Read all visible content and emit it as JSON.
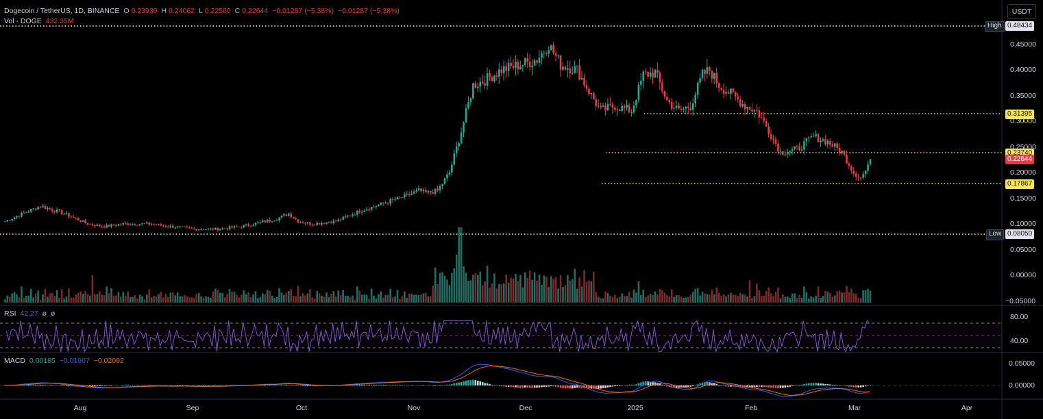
{
  "header": {
    "symbol": "Dogecoin / TetherUS, 1D, BINANCE",
    "open_label": "O",
    "open": "0.23930",
    "high_label": "H",
    "high": "0.24062",
    "low_label": "L",
    "low": "0.22560",
    "close_label": "C",
    "close": "0.22644",
    "change": "−0.01287 (−5.38%)",
    "change2": "−0.01287 (−5.38%)",
    "vol_label": "Vol · DOGE",
    "vol_value": "432.35M"
  },
  "currency_button": "USDT",
  "price_axis": {
    "ticks": [
      "0.45000",
      "0.40000",
      "0.35000",
      "0.30000",
      "0.25000",
      "0.20000",
      "0.15000",
      "0.10000",
      "0.05000",
      "0.00000",
      "−0.05000"
    ]
  },
  "markers": {
    "high_label": "High",
    "high_value": "0.48434",
    "low_label": "Low",
    "low_value": "0.08050",
    "level1": "0.31395",
    "level2": "0.23740",
    "current": "0.22644",
    "level3": "0.17867"
  },
  "rsi": {
    "label": "RSI",
    "value": "42.27",
    "extra1": "ø",
    "extra2": "ø",
    "ticks": [
      "80.00",
      "40.00"
    ]
  },
  "macd": {
    "label": "MACD",
    "hist": "0.00185",
    "macd": "−0.01907",
    "signal": "−0.02092",
    "ticks": [
      "0.05000",
      "0.00000"
    ]
  },
  "time_axis": [
    "Aug",
    "Sep",
    "Oct",
    "Nov",
    "Dec",
    "2025",
    "Feb",
    "Mar",
    "Apr"
  ],
  "colors": {
    "up": "#22ab94",
    "down": "#f23645",
    "up_vol": "#1e6e62",
    "down_vol": "#7a2a2e",
    "rsi_line": "#7e57c2",
    "macd_line": "#2962ff",
    "signal_line": "#ff6d00",
    "level_line": "#f7e64f",
    "extreme_line": "#ffffff"
  },
  "chart_data": {
    "type": "candlestick",
    "symbol": "Dogecoin / TetherUS",
    "interval": "1D",
    "price_range": [
      0.0,
      0.48434
    ],
    "x": [
      "Aug",
      "Sep",
      "Oct",
      "Nov",
      "Dec",
      "2025",
      "Feb",
      "Mar",
      "Apr"
    ],
    "anchors": [
      [
        0,
        0.105
      ],
      [
        10,
        0.125
      ],
      [
        15,
        0.135
      ],
      [
        25,
        0.12
      ],
      [
        35,
        0.1
      ],
      [
        42,
        0.095
      ],
      [
        50,
        0.1
      ],
      [
        60,
        0.1
      ],
      [
        70,
        0.095
      ],
      [
        80,
        0.09
      ],
      [
        90,
        0.09
      ],
      [
        100,
        0.095
      ],
      [
        110,
        0.105
      ],
      [
        115,
        0.11
      ],
      [
        120,
        0.12
      ],
      [
        124,
        0.105
      ],
      [
        130,
        0.1
      ],
      [
        140,
        0.105
      ],
      [
        150,
        0.125
      ],
      [
        160,
        0.14
      ],
      [
        170,
        0.155
      ],
      [
        175,
        0.165
      ],
      [
        178,
        0.16
      ],
      [
        183,
        0.165
      ],
      [
        188,
        0.2
      ],
      [
        193,
        0.28
      ],
      [
        198,
        0.37
      ],
      [
        203,
        0.38
      ],
      [
        210,
        0.4
      ],
      [
        218,
        0.41
      ],
      [
        225,
        0.42
      ],
      [
        230,
        0.45
      ],
      [
        235,
        0.41
      ],
      [
        242,
        0.4
      ],
      [
        248,
        0.35
      ],
      [
        252,
        0.32
      ],
      [
        258,
        0.33
      ],
      [
        265,
        0.32
      ],
      [
        270,
        0.39
      ],
      [
        275,
        0.395
      ],
      [
        280,
        0.34
      ],
      [
        285,
        0.32
      ],
      [
        290,
        0.33
      ],
      [
        295,
        0.39
      ],
      [
        298,
        0.4
      ],
      [
        302,
        0.37
      ],
      [
        308,
        0.35
      ],
      [
        313,
        0.33
      ],
      [
        318,
        0.32
      ],
      [
        322,
        0.29
      ],
      [
        328,
        0.24
      ],
      [
        335,
        0.245
      ],
      [
        342,
        0.27
      ],
      [
        348,
        0.26
      ],
      [
        354,
        0.24
      ],
      [
        359,
        0.2
      ],
      [
        362,
        0.19
      ],
      [
        365,
        0.21
      ],
      [
        366,
        0.232
      ]
    ],
    "volume_peaks": [
      [
        55,
        0.0
      ],
      [
        192,
        0.0
      ]
    ]
  }
}
